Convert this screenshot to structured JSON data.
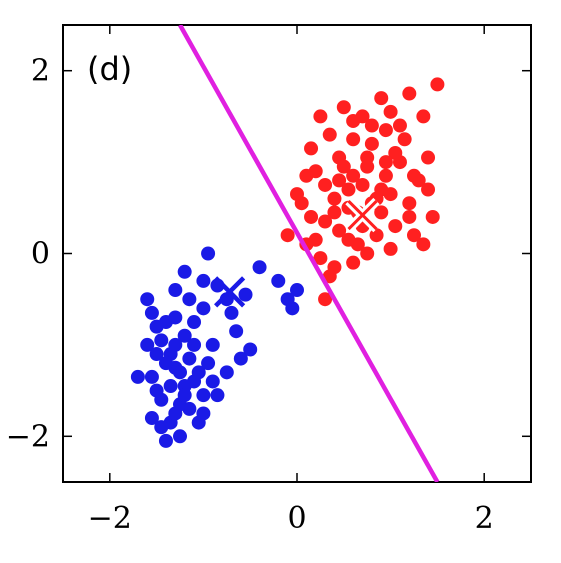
{
  "chart_data": {
    "type": "scatter",
    "panel_label": "(d)",
    "xlim": [
      -2.5,
      2.5
    ],
    "ylim": [
      -2.5,
      2.5
    ],
    "x_ticks": [
      -2,
      0,
      2
    ],
    "y_ticks": [
      -2,
      0,
      2
    ],
    "x_tick_labels": [
      "−2",
      "0",
      "2"
    ],
    "y_tick_labels": [
      "−2",
      "0",
      "2"
    ],
    "grid": false,
    "series": [
      {
        "color": "#ff2020",
        "points": [
          [
            0.65,
            0.45
          ],
          [
            0.9,
            0.7
          ],
          [
            0.4,
            0.6
          ],
          [
            1.05,
            0.3
          ],
          [
            0.55,
            0.15
          ],
          [
            0.75,
            0.95
          ],
          [
            1.2,
            0.55
          ],
          [
            0.3,
            0.35
          ],
          [
            0.85,
            0.2
          ],
          [
            0.6,
            0.85
          ],
          [
            1.1,
            1.0
          ],
          [
            0.45,
            1.05
          ],
          [
            0.95,
            1.35
          ],
          [
            0.7,
            1.5
          ],
          [
            0.5,
            1.6
          ],
          [
            1.35,
            1.5
          ],
          [
            1.2,
            1.75
          ],
          [
            1.5,
            1.85
          ],
          [
            1.0,
            1.55
          ],
          [
            0.2,
            0.9
          ],
          [
            0.05,
            0.55
          ],
          [
            -0.1,
            0.2
          ],
          [
            0.1,
            0.1
          ],
          [
            0.25,
            -0.05
          ],
          [
            0.4,
            -0.15
          ],
          [
            0.6,
            -0.1
          ],
          [
            0.75,
            0.0
          ],
          [
            1.0,
            0.05
          ],
          [
            1.25,
            0.2
          ],
          [
            1.45,
            0.4
          ],
          [
            1.3,
            0.8
          ],
          [
            0.8,
            1.2
          ],
          [
            0.35,
            1.3
          ],
          [
            0.15,
            1.15
          ],
          [
            0.55,
            0.5
          ],
          [
            0.7,
            0.3
          ],
          [
            0.85,
            0.6
          ],
          [
            1.15,
            1.25
          ],
          [
            0.95,
            0.85
          ],
          [
            0.3,
            0.75
          ],
          [
            0.45,
            0.25
          ],
          [
            0.0,
            0.65
          ],
          [
            0.6,
            1.25
          ],
          [
            1.05,
            1.1
          ],
          [
            1.4,
            1.05
          ],
          [
            0.8,
            1.4
          ],
          [
            0.5,
            0.95
          ],
          [
            0.25,
            1.5
          ],
          [
            0.9,
            0.45
          ],
          [
            0.7,
            0.75
          ],
          [
            0.35,
            -0.25
          ],
          [
            0.3,
            -0.5
          ],
          [
            0.65,
            0.1
          ],
          [
            1.35,
            0.1
          ],
          [
            1.0,
            0.65
          ],
          [
            0.15,
            0.4
          ],
          [
            0.9,
            1.7
          ],
          [
            1.1,
            1.4
          ],
          [
            0.4,
            0.45
          ],
          [
            0.55,
            0.7
          ],
          [
            0.8,
            0.55
          ],
          [
            1.25,
            0.85
          ],
          [
            1.2,
            0.4
          ],
          [
            0.1,
            0.85
          ],
          [
            0.45,
            0.8
          ],
          [
            0.75,
            1.05
          ],
          [
            0.6,
            1.45
          ],
          [
            0.95,
            1.0
          ],
          [
            1.4,
            0.7
          ],
          [
            0.2,
            0.15
          ]
        ],
        "centroid": [
          0.7,
          0.42
        ]
      },
      {
        "color": "#1a1ae6",
        "points": [
          [
            -1.3,
            -1.25
          ],
          [
            -1.1,
            -1.4
          ],
          [
            -1.45,
            -1.6
          ],
          [
            -1.2,
            -0.9
          ],
          [
            -1.35,
            -1.85
          ],
          [
            -1.0,
            -1.55
          ],
          [
            -1.5,
            -1.1
          ],
          [
            -1.25,
            -2.0
          ],
          [
            -1.55,
            -1.35
          ],
          [
            -1.15,
            -1.7
          ],
          [
            -1.4,
            -0.75
          ],
          [
            -0.95,
            -1.2
          ],
          [
            -1.6,
            -0.5
          ],
          [
            -1.3,
            -0.4
          ],
          [
            -1.0,
            -0.6
          ],
          [
            -1.45,
            -0.95
          ],
          [
            -1.2,
            -1.45
          ],
          [
            -1.35,
            -1.1
          ],
          [
            -1.1,
            -1.0
          ],
          [
            -1.55,
            -1.8
          ],
          [
            -1.25,
            -1.65
          ],
          [
            -1.05,
            -1.85
          ],
          [
            -1.4,
            -2.05
          ],
          [
            -1.7,
            -1.35
          ],
          [
            -1.2,
            -0.2
          ],
          [
            -1.5,
            -1.5
          ],
          [
            -1.3,
            -0.7
          ],
          [
            -0.9,
            -1.0
          ],
          [
            -0.75,
            -1.3
          ],
          [
            -0.65,
            -0.85
          ],
          [
            -0.6,
            -1.15
          ],
          [
            -0.55,
            -0.45
          ],
          [
            -0.75,
            -0.5
          ],
          [
            -0.95,
            0.0
          ],
          [
            -1.0,
            -0.3
          ],
          [
            -0.85,
            -0.35
          ],
          [
            -0.4,
            -0.15
          ],
          [
            -0.2,
            -0.3
          ],
          [
            -0.1,
            -0.5
          ],
          [
            -0.05,
            -0.6
          ],
          [
            0.0,
            -0.4
          ],
          [
            -1.25,
            -1.3
          ],
          [
            -1.4,
            -1.2
          ],
          [
            -1.15,
            -1.15
          ],
          [
            -1.35,
            -1.45
          ],
          [
            -1.5,
            -0.8
          ],
          [
            -1.05,
            -1.3
          ],
          [
            -1.2,
            -1.55
          ],
          [
            -1.6,
            -1.0
          ],
          [
            -0.85,
            -1.55
          ],
          [
            -1.3,
            -1.75
          ],
          [
            -1.45,
            -1.9
          ],
          [
            -1.1,
            -0.75
          ],
          [
            -0.7,
            -0.65
          ],
          [
            -1.0,
            -1.75
          ],
          [
            -1.55,
            -0.65
          ],
          [
            -1.3,
            -1.0
          ],
          [
            -0.9,
            -1.4
          ],
          [
            -0.5,
            -1.05
          ],
          [
            -1.15,
            -0.5
          ]
        ],
        "centroid": [
          -0.72,
          -0.42
        ]
      }
    ],
    "line": {
      "color": "#e020e0",
      "points": [
        [
          -1.25,
          2.5
        ],
        [
          1.5,
          -2.5
        ]
      ]
    }
  }
}
